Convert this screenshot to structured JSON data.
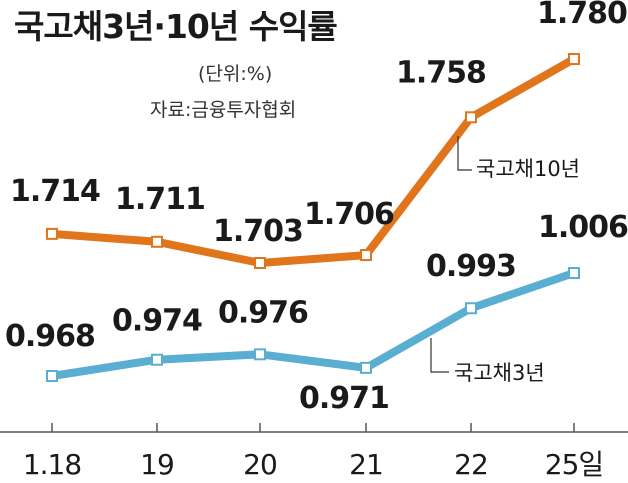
{
  "chart_data": {
    "type": "line",
    "title": "국고채3년·10년 수익률",
    "unit": "(단위:%)",
    "source": "자료:금융투자협회",
    "categories": [
      "1.18",
      "19",
      "20",
      "21",
      "22",
      "25일"
    ],
    "series": [
      {
        "name": "국고채10년",
        "color": "#e0751b",
        "values": [
          1.714,
          1.711,
          1.703,
          1.706,
          1.758,
          1.78
        ],
        "labels": [
          "1.714",
          "1.711",
          "1.703",
          "1.706",
          "1.758",
          "1.780"
        ]
      },
      {
        "name": "국고채3년",
        "color": "#5aaed2",
        "values": [
          0.968,
          0.974,
          0.976,
          0.971,
          0.993,
          1.006
        ],
        "labels": [
          "0.968",
          "0.974",
          "0.976",
          "0.971",
          "0.993",
          "1.006"
        ]
      }
    ],
    "grid": false,
    "legend": "inline labels next to lines"
  }
}
